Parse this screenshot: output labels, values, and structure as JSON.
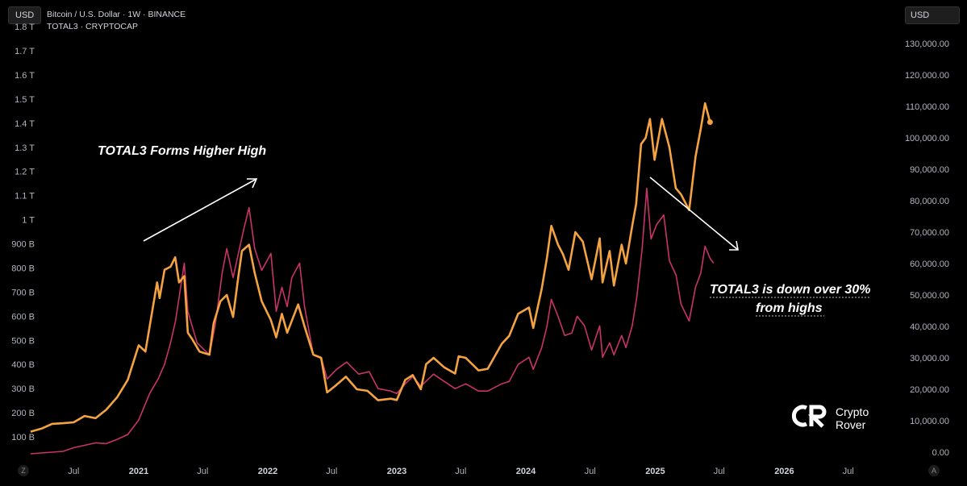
{
  "header": {
    "left_currency": "USD",
    "right_currency": "USD",
    "series_1_label": "Bitcoin / U.S. Dollar · 1W · BINANCE",
    "series_2_label": "TOTAL3 · CRYPTOCAP",
    "corner_left": "Z",
    "corner_right": "A"
  },
  "annotations": {
    "left_text": "TOTAL3 Forms Higher High",
    "right_line_1": "TOTAL3 is down over 30%",
    "right_line_2": "from highs"
  },
  "brand": {
    "line_1": "Crypto",
    "line_2": "Rover"
  },
  "colors": {
    "btc": "#f5a340",
    "total3": "#c8336a",
    "background": "#000000"
  },
  "chart_data": {
    "type": "line",
    "left_axis": {
      "ticks": [
        "1.8 T",
        "1.7 T",
        "1.6 T",
        "1.5 T",
        "1.4 T",
        "1.3 T",
        "1.2 T",
        "1.1 T",
        "1 T",
        "900 B",
        "800 B",
        "700 B",
        "600 B",
        "500 B",
        "400 B",
        "300 B",
        "200 B",
        "100 B"
      ],
      "tick_values": [
        1800,
        1700,
        1600,
        1500,
        1400,
        1300,
        1200,
        1100,
        1000,
        900,
        800,
        700,
        600,
        500,
        400,
        300,
        200,
        100
      ],
      "unit": "billions USD"
    },
    "right_axis": {
      "ticks": [
        "130,000.00",
        "120,000.00",
        "110,000.00",
        "100,000.00",
        "90,000.00",
        "80,000.00",
        "70,000.00",
        "60,000.00",
        "50,000.00",
        "40,000.00",
        "30,000.00",
        "20,000.00",
        "10,000.00",
        "0.00"
      ],
      "tick_values": [
        130000,
        120000,
        110000,
        100000,
        90000,
        80000,
        70000,
        60000,
        50000,
        40000,
        30000,
        20000,
        10000,
        0
      ]
    },
    "x_axis": {
      "ticks": [
        {
          "label": "Jul",
          "date": "2020-07-01",
          "bold": false
        },
        {
          "label": "2021",
          "date": "2021-01-01",
          "bold": true
        },
        {
          "label": "Jul",
          "date": "2021-07-01",
          "bold": false
        },
        {
          "label": "2022",
          "date": "2022-01-01",
          "bold": true
        },
        {
          "label": "Jul",
          "date": "2022-07-01",
          "bold": false
        },
        {
          "label": "2023",
          "date": "2023-01-01",
          "bold": true
        },
        {
          "label": "Jul",
          "date": "2023-07-01",
          "bold": false
        },
        {
          "label": "2024",
          "date": "2024-01-01",
          "bold": true
        },
        {
          "label": "Jul",
          "date": "2024-07-01",
          "bold": false
        },
        {
          "label": "2025",
          "date": "2025-01-01",
          "bold": true
        },
        {
          "label": "Jul",
          "date": "2025-07-01",
          "bold": false
        },
        {
          "label": "2026",
          "date": "2026-01-01",
          "bold": true
        },
        {
          "label": "Jul",
          "date": "2026-07-01",
          "bold": false
        }
      ]
    },
    "series": [
      {
        "name": "Bitcoin / U.S. Dollar · 1W · BINANCE",
        "axis": "right",
        "points": [
          [
            "2020-03-01",
            6500
          ],
          [
            "2020-04-01",
            7500
          ],
          [
            "2020-05-01",
            9000
          ],
          [
            "2020-06-01",
            9200
          ],
          [
            "2020-07-01",
            9500
          ],
          [
            "2020-08-01",
            11500
          ],
          [
            "2020-09-01",
            10800
          ],
          [
            "2020-10-01",
            13500
          ],
          [
            "2020-11-01",
            17500
          ],
          [
            "2020-12-01",
            23000
          ],
          [
            "2021-01-01",
            34000
          ],
          [
            "2021-01-20",
            32000
          ],
          [
            "2021-02-10",
            46000
          ],
          [
            "2021-02-22",
            54000
          ],
          [
            "2021-03-01",
            49000
          ],
          [
            "2021-03-15",
            58000
          ],
          [
            "2021-04-01",
            59000
          ],
          [
            "2021-04-14",
            62000
          ],
          [
            "2021-04-25",
            54000
          ],
          [
            "2021-05-10",
            56000
          ],
          [
            "2021-05-20",
            38000
          ],
          [
            "2021-06-01",
            36000
          ],
          [
            "2021-06-22",
            32000
          ],
          [
            "2021-07-20",
            31000
          ],
          [
            "2021-08-01",
            41000
          ],
          [
            "2021-08-20",
            48000
          ],
          [
            "2021-09-07",
            50000
          ],
          [
            "2021-09-25",
            43000
          ],
          [
            "2021-10-10",
            56000
          ],
          [
            "2021-10-20",
            64000
          ],
          [
            "2021-11-09",
            66000
          ],
          [
            "2021-11-25",
            57000
          ],
          [
            "2021-12-15",
            48000
          ],
          [
            "2022-01-10",
            42000
          ],
          [
            "2022-01-25",
            36500
          ],
          [
            "2022-02-10",
            44000
          ],
          [
            "2022-02-25",
            38000
          ],
          [
            "2022-03-28",
            47000
          ],
          [
            "2022-04-15",
            40000
          ],
          [
            "2022-05-10",
            31000
          ],
          [
            "2022-06-01",
            30000
          ],
          [
            "2022-06-18",
            19000
          ],
          [
            "2022-07-10",
            21000
          ],
          [
            "2022-08-10",
            24000
          ],
          [
            "2022-09-10",
            20000
          ],
          [
            "2022-10-10",
            19500
          ],
          [
            "2022-11-09",
            16500
          ],
          [
            "2022-12-15",
            17000
          ],
          [
            "2023-01-01",
            16600
          ],
          [
            "2023-01-25",
            23000
          ],
          [
            "2023-02-15",
            24500
          ],
          [
            "2023-03-10",
            20000
          ],
          [
            "2023-03-25",
            28000
          ],
          [
            "2023-04-15",
            30000
          ],
          [
            "2023-05-15",
            27000
          ],
          [
            "2023-06-15",
            25000
          ],
          [
            "2023-06-25",
            30500
          ],
          [
            "2023-07-15",
            30000
          ],
          [
            "2023-08-20",
            26000
          ],
          [
            "2023-09-15",
            26500
          ],
          [
            "2023-10-25",
            34500
          ],
          [
            "2023-11-15",
            37000
          ],
          [
            "2023-12-10",
            44000
          ],
          [
            "2024-01-10",
            46000
          ],
          [
            "2024-01-22",
            39500
          ],
          [
            "2024-02-15",
            52000
          ],
          [
            "2024-03-01",
            62000
          ],
          [
            "2024-03-13",
            72000
          ],
          [
            "2024-04-01",
            66000
          ],
          [
            "2024-04-15",
            63000
          ],
          [
            "2024-05-01",
            58000
          ],
          [
            "2024-05-20",
            70000
          ],
          [
            "2024-06-10",
            67000
          ],
          [
            "2024-07-05",
            55000
          ],
          [
            "2024-07-28",
            68000
          ],
          [
            "2024-08-05",
            54000
          ],
          [
            "2024-08-25",
            64000
          ],
          [
            "2024-09-06",
            53000
          ],
          [
            "2024-09-28",
            66000
          ],
          [
            "2024-10-10",
            60000
          ],
          [
            "2024-10-28",
            72000
          ],
          [
            "2024-11-08",
            79000
          ],
          [
            "2024-11-22",
            98000
          ],
          [
            "2024-12-05",
            100000
          ],
          [
            "2024-12-17",
            106000
          ],
          [
            "2024-12-30",
            93000
          ],
          [
            "2025-01-20",
            106000
          ],
          [
            "2025-02-10",
            97000
          ],
          [
            "2025-02-28",
            84000
          ],
          [
            "2025-03-15",
            82000
          ],
          [
            "2025-04-07",
            77000
          ],
          [
            "2025-04-25",
            94000
          ],
          [
            "2025-05-10",
            103000
          ],
          [
            "2025-05-22",
            111000
          ],
          [
            "2025-06-05",
            105000
          ]
        ]
      },
      {
        "name": "TOTAL3 · CRYPTOCAP",
        "axis": "left",
        "points": [
          [
            "2020-03-01",
            30
          ],
          [
            "2020-06-01",
            40
          ],
          [
            "2020-07-01",
            55
          ],
          [
            "2020-09-01",
            75
          ],
          [
            "2020-10-01",
            72
          ],
          [
            "2020-11-01",
            90
          ],
          [
            "2020-12-01",
            110
          ],
          [
            "2021-01-01",
            170
          ],
          [
            "2021-02-01",
            280
          ],
          [
            "2021-02-25",
            340
          ],
          [
            "2021-03-15",
            400
          ],
          [
            "2021-04-01",
            490
          ],
          [
            "2021-04-15",
            580
          ],
          [
            "2021-05-10",
            820
          ],
          [
            "2021-05-20",
            620
          ],
          [
            "2021-06-15",
            490
          ],
          [
            "2021-07-20",
            440
          ],
          [
            "2021-08-05",
            560
          ],
          [
            "2021-08-25",
            780
          ],
          [
            "2021-09-07",
            880
          ],
          [
            "2021-09-25",
            760
          ],
          [
            "2021-10-10",
            860
          ],
          [
            "2021-10-25",
            960
          ],
          [
            "2021-11-09",
            1050
          ],
          [
            "2021-11-25",
            880
          ],
          [
            "2021-12-15",
            790
          ],
          [
            "2022-01-10",
            860
          ],
          [
            "2022-01-25",
            620
          ],
          [
            "2022-02-10",
            720
          ],
          [
            "2022-02-25",
            640
          ],
          [
            "2022-03-10",
            760
          ],
          [
            "2022-04-01",
            820
          ],
          [
            "2022-04-15",
            640
          ],
          [
            "2022-05-10",
            440
          ],
          [
            "2022-06-01",
            430
          ],
          [
            "2022-06-18",
            340
          ],
          [
            "2022-07-15",
            380
          ],
          [
            "2022-08-12",
            410
          ],
          [
            "2022-09-15",
            360
          ],
          [
            "2022-10-15",
            370
          ],
          [
            "2022-11-09",
            300
          ],
          [
            "2022-12-15",
            290
          ],
          [
            "2023-01-01",
            280
          ],
          [
            "2023-01-25",
            320
          ],
          [
            "2023-02-15",
            350
          ],
          [
            "2023-03-10",
            310
          ],
          [
            "2023-04-15",
            360
          ],
          [
            "2023-05-15",
            330
          ],
          [
            "2023-06-15",
            300
          ],
          [
            "2023-07-15",
            320
          ],
          [
            "2023-08-20",
            290
          ],
          [
            "2023-09-15",
            290
          ],
          [
            "2023-10-25",
            320
          ],
          [
            "2023-11-15",
            330
          ],
          [
            "2023-12-10",
            400
          ],
          [
            "2024-01-10",
            430
          ],
          [
            "2024-01-22",
            380
          ],
          [
            "2024-02-15",
            470
          ],
          [
            "2024-03-01",
            560
          ],
          [
            "2024-03-13",
            670
          ],
          [
            "2024-04-01",
            600
          ],
          [
            "2024-04-20",
            520
          ],
          [
            "2024-05-10",
            530
          ],
          [
            "2024-05-25",
            600
          ],
          [
            "2024-06-15",
            560
          ],
          [
            "2024-07-05",
            460
          ],
          [
            "2024-07-28",
            560
          ],
          [
            "2024-08-05",
            430
          ],
          [
            "2024-08-25",
            490
          ],
          [
            "2024-09-06",
            440
          ],
          [
            "2024-09-28",
            520
          ],
          [
            "2024-10-10",
            470
          ],
          [
            "2024-10-28",
            560
          ],
          [
            "2024-11-10",
            680
          ],
          [
            "2024-11-25",
            880
          ],
          [
            "2024-12-08",
            1130
          ],
          [
            "2024-12-20",
            920
          ],
          [
            "2025-01-05",
            980
          ],
          [
            "2025-01-25",
            1020
          ],
          [
            "2025-02-10",
            830
          ],
          [
            "2025-03-01",
            770
          ],
          [
            "2025-03-15",
            650
          ],
          [
            "2025-04-07",
            580
          ],
          [
            "2025-04-25",
            720
          ],
          [
            "2025-05-10",
            780
          ],
          [
            "2025-05-22",
            890
          ],
          [
            "2025-06-05",
            840
          ],
          [
            "2025-06-15",
            820
          ]
        ]
      }
    ],
    "grid": false,
    "legend": "top-left"
  }
}
